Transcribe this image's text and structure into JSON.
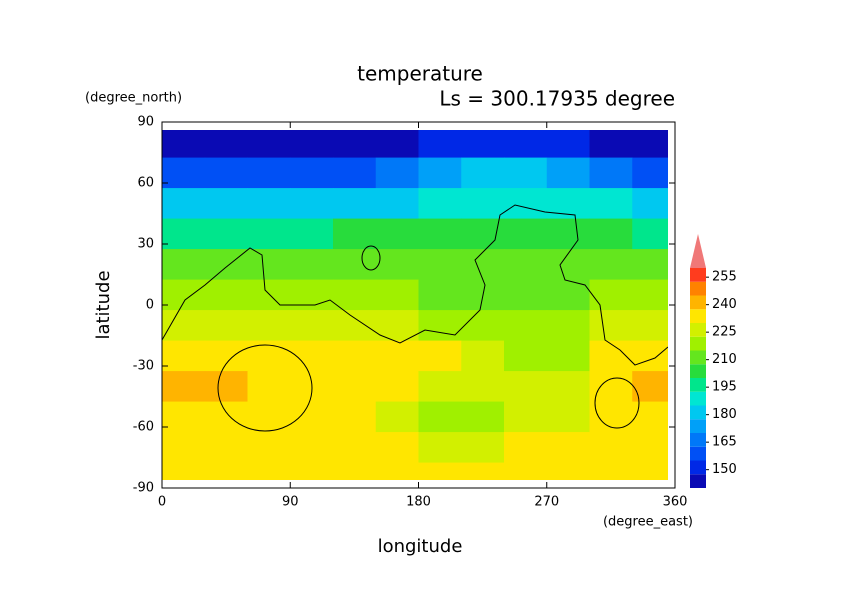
{
  "chart_data": {
    "type": "contour",
    "title": "temperature",
    "subtitle": "Ls = 300.17935 degree",
    "x_label": "longitude",
    "x_unit": "(degree_east)",
    "y_label": "latitude",
    "y_unit": "(degree_north)",
    "xlim": [
      0,
      360
    ],
    "xticks": [
      0,
      90,
      180,
      270,
      360
    ],
    "ylim": [
      -90,
      90
    ],
    "yticks": [
      90,
      60,
      30,
      0,
      -30,
      -60,
      -90
    ],
    "x": [
      15,
      45,
      75,
      105,
      135,
      165,
      195,
      225,
      255,
      285,
      315,
      345
    ],
    "y": [
      80,
      65,
      50,
      35,
      20,
      5,
      -10,
      -25,
      -40,
      -55,
      -70,
      -85
    ],
    "z": [
      [
        145,
        145,
        145,
        145,
        145,
        145,
        148,
        148,
        148,
        148,
        145,
        145
      ],
      [
        158,
        158,
        158,
        158,
        160,
        165,
        175,
        178,
        178,
        175,
        165,
        162
      ],
      [
        180,
        180,
        180,
        180,
        182,
        183,
        190,
        192,
        192,
        190,
        185,
        183
      ],
      [
        198,
        198,
        198,
        199,
        200,
        200,
        200,
        202,
        202,
        200,
        200,
        199
      ],
      [
        210,
        210,
        211,
        212,
        212,
        212,
        212,
        212,
        212,
        212,
        212,
        211
      ],
      [
        218,
        220,
        222,
        222,
        222,
        220,
        214,
        212,
        212,
        213,
        218,
        220
      ],
      [
        228,
        228,
        228,
        226,
        226,
        225,
        218,
        215,
        215,
        216,
        225,
        228
      ],
      [
        236,
        236,
        233,
        232,
        232,
        232,
        230,
        226,
        222,
        222,
        232,
        236
      ],
      [
        238,
        238,
        237,
        232,
        230,
        230,
        228,
        228,
        226,
        228,
        232,
        238
      ],
      [
        233,
        232,
        232,
        230,
        230,
        228,
        222,
        222,
        223,
        225,
        230,
        233
      ],
      [
        230,
        230,
        230,
        230,
        230,
        230,
        229,
        229,
        230,
        230,
        230,
        230
      ],
      [
        230,
        230,
        230,
        230,
        230,
        230,
        230,
        230,
        230,
        230,
        230,
        230
      ]
    ],
    "levels": [
      140,
      147.5,
      155,
      162.5,
      170,
      177.5,
      185,
      192.5,
      200,
      207.5,
      215,
      222.5,
      230,
      237.5,
      245,
      252.5,
      260
    ],
    "colors": [
      "#0a0ab4",
      "#0028e6",
      "#0050f5",
      "#0078f8",
      "#00a0f8",
      "#00c8f0",
      "#00e6d2",
      "#00e68c",
      "#28dc3c",
      "#64e61e",
      "#a0f000",
      "#d2f000",
      "#ffe600",
      "#ffb400",
      "#ff8200",
      "#ff3c1e"
    ],
    "extend_color": "#f07878",
    "colorbar_ticks": [
      150,
      165,
      180,
      195,
      210,
      225,
      240,
      255
    ]
  }
}
